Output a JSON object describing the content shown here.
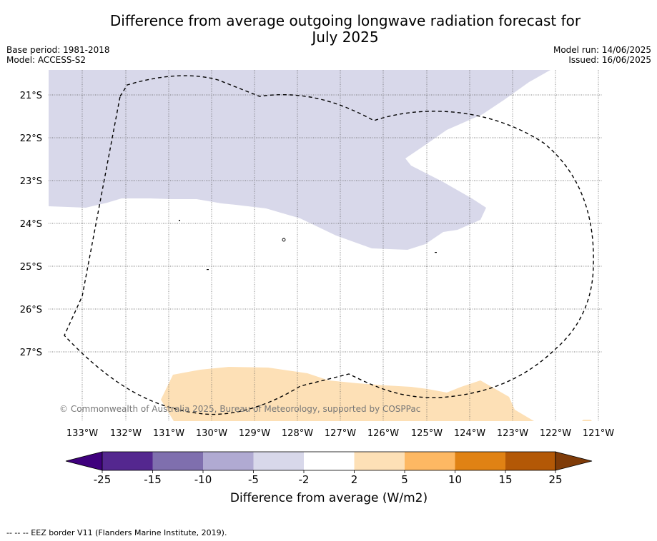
{
  "header": {
    "title_line1": "Difference from average outgoing longwave radiation forecast for",
    "title_line2": "July 2025",
    "base_period": "Base period: 1981-2018",
    "model": "Model: ACCESS-S2",
    "model_run": "Model run: 14/06/2025",
    "issued": "Issued: 16/06/2025"
  },
  "map": {
    "region": "South Pacific Ocean, 21°S–28°S, 121°W–133°W",
    "lat_labels": [
      "21°S",
      "22°S",
      "23°S",
      "24°S",
      "25°S",
      "26°S",
      "27°S"
    ],
    "lon_labels": [
      "133°W",
      "132°W",
      "131°W",
      "130°W",
      "129°W",
      "128°W",
      "127°W",
      "126°W",
      "125°W",
      "124°W",
      "123°W",
      "122°W",
      "121°W"
    ],
    "copyright": "© Commonwealth of Australia 2025, Bureau of Meteorology, supported by COSPPac",
    "shaded_regions": [
      {
        "category": "-5 to -2",
        "color": "#d8d8ea",
        "location": "northern part of map"
      },
      {
        "category": "2 to 5",
        "color": "#fde0b6",
        "location": "southern edge of map"
      }
    ],
    "overlay": "EEZ border (dashed)"
  },
  "colorbar": {
    "title": "Difference from average (W/m2)",
    "tick_labels": [
      "-25",
      "-15",
      "-10",
      "-5",
      "-2",
      "2",
      "5",
      "10",
      "15",
      "25"
    ],
    "colors": [
      "#3f007d",
      "#54278f",
      "#7f6fae",
      "#b0aad2",
      "#d8d8ea",
      "#ffffff",
      "#fde0b6",
      "#fdb863",
      "#e08214",
      "#b35806",
      "#7f3b08"
    ]
  },
  "footer": {
    "legend_text": "--  --  -- EEZ border V11 (Flanders Marine Institute, 2019)."
  }
}
